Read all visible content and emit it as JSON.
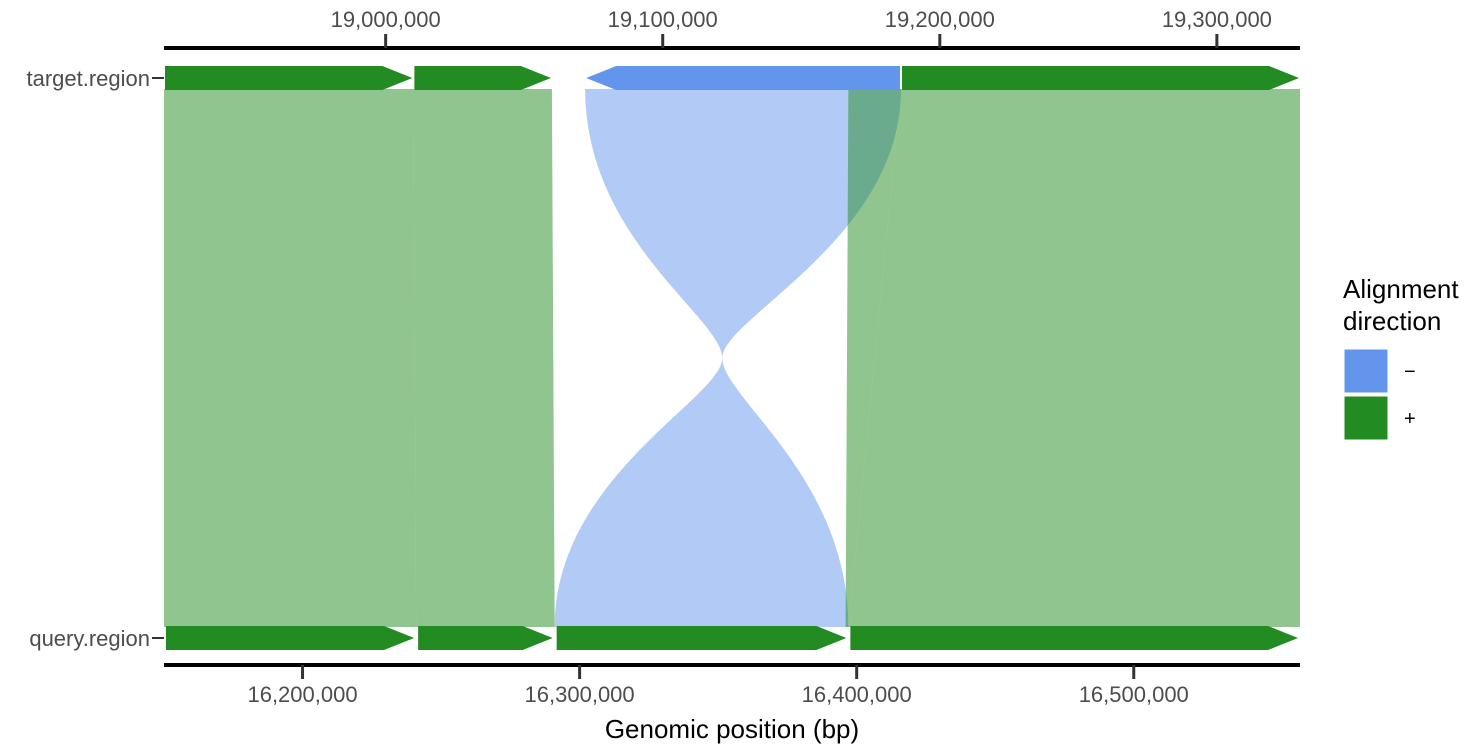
{
  "chart_data": {
    "type": "synteny",
    "xlabel": "Genomic position (bp)",
    "tracks": {
      "target": {
        "name": "target.region",
        "xlim": [
          18920000,
          19330000
        ],
        "ticks": [
          {
            "value": 19000000,
            "label": "19,000,000"
          },
          {
            "value": 19100000,
            "label": "19,100,000"
          },
          {
            "value": 19200000,
            "label": "19,200,000"
          },
          {
            "value": 19300000,
            "label": "19,300,000"
          }
        ]
      },
      "query": {
        "name": "query.region",
        "xlim": [
          16150000,
          16560000
        ],
        "ticks": [
          {
            "value": 16200000,
            "label": "16,200,000"
          },
          {
            "value": 16300000,
            "label": "16,300,000"
          },
          {
            "value": 16400000,
            "label": "16,400,000"
          },
          {
            "value": 16500000,
            "label": "16,500,000"
          }
        ]
      }
    },
    "alignments": [
      {
        "direction": "+",
        "target_start": 18920000,
        "target_end": 19010000,
        "query_start": 16150000,
        "query_end": 16241000
      },
      {
        "direction": "+",
        "target_start": 19010000,
        "target_end": 19060000,
        "query_start": 16241000,
        "query_end": 16291000
      },
      {
        "direction": "-",
        "target_start": 19072000,
        "target_end": 19186000,
        "query_start": 16291000,
        "query_end": 16397000
      },
      {
        "direction": "+",
        "target_start": 19186000,
        "target_end": 19330000,
        "query_start": 16397000,
        "query_end": 16560000
      },
      {
        "direction": "+",
        "target_start": 19167000,
        "target_end": 19186000,
        "query_start": 16396000,
        "query_end": 16397000,
        "ribbon_only": true
      }
    ],
    "legend": {
      "title_lines": [
        "Alignment",
        "direction"
      ],
      "placement": "right",
      "entries": [
        {
          "key": "-",
          "label": "−",
          "color": "#6495ED"
        },
        {
          "key": "+",
          "label": "+",
          "color": "#228B22"
        }
      ]
    },
    "colors": {
      "-": "#6495ED",
      "+": "#228B22",
      "axis": "#000000",
      "tick": "#333333"
    }
  }
}
